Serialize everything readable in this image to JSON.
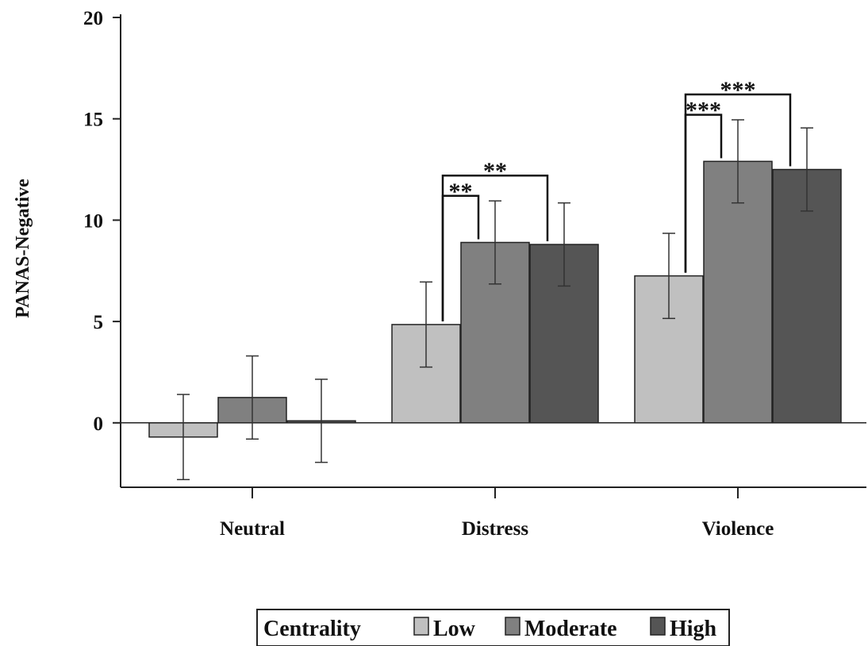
{
  "chart_data": {
    "type": "bar",
    "ylabel": "PANAS-Negative",
    "xlabel": "",
    "ylim": [
      -3.2,
      20
    ],
    "yticks": [
      0,
      5,
      10,
      15,
      20
    ],
    "categories": [
      "Neutral",
      "Distress",
      "Violence"
    ],
    "legend": {
      "title": "Centrality",
      "placement": "bottom"
    },
    "series": [
      {
        "name": "Low",
        "color": "#c0c0c0",
        "values": [
          -0.7,
          4.85,
          7.25
        ],
        "error": [
          2.1,
          2.1,
          2.1
        ]
      },
      {
        "name": "Moderate",
        "color": "#808080",
        "values": [
          1.25,
          8.9,
          12.9
        ],
        "error": [
          2.05,
          2.05,
          2.05
        ]
      },
      {
        "name": "High",
        "color": "#555555",
        "values": [
          0.1,
          8.8,
          12.5
        ],
        "error": [
          2.05,
          2.05,
          2.05
        ]
      }
    ],
    "annotations": [
      {
        "category": "Distress",
        "from": "Low",
        "to": "Moderate",
        "label": "**",
        "level": 11.2
      },
      {
        "category": "Distress",
        "from": "Low",
        "to": "High",
        "label": "**",
        "level": 12.2
      },
      {
        "category": "Violence",
        "from": "Low",
        "to": "Moderate",
        "label": "***",
        "level": 15.2
      },
      {
        "category": "Violence",
        "from": "Low",
        "to": "High",
        "label": "***",
        "level": 16.2
      }
    ]
  }
}
